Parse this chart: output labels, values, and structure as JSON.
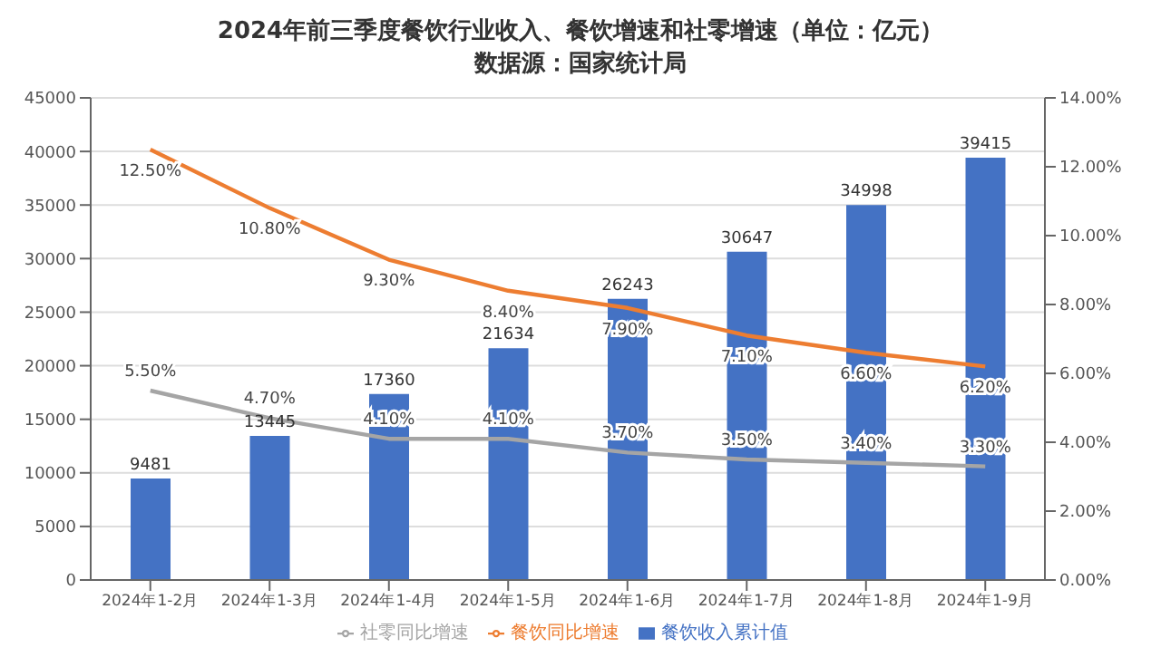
{
  "chart_data": {
    "type": "bar",
    "title": "2024年前三季度餐饮行业收入、餐饮增速和社零增速（单位：亿元）",
    "subtitle": "数据源：国家统计局",
    "categories": [
      "2024年1-2月",
      "2024年1-3月",
      "2024年1-4月",
      "2024年1-5月",
      "2024年1-6月",
      "2024年1-7月",
      "2024年1-8月",
      "2024年1-9月"
    ],
    "series": [
      {
        "name": "餐饮收入累计值",
        "color": "#4472c4",
        "values": [
          9481,
          13445,
          17360,
          21634,
          26243,
          30647,
          34998,
          39415
        ],
        "value_labels": [
          "9481",
          "13445",
          "17360",
          "21634",
          "26243",
          "30647",
          "34998",
          "39415"
        ]
      },
      {
        "name": "餐饮同比增速",
        "type": "line",
        "axis": "y2",
        "color": "#ed7d31",
        "values": [
          12.5,
          10.8,
          9.3,
          8.4,
          7.9,
          7.1,
          6.6,
          6.2
        ],
        "value_labels": [
          "12.50%",
          "10.80%",
          "9.30%",
          "8.40%",
          "7.90%",
          "7.10%",
          "6.60%",
          "6.20%"
        ]
      },
      {
        "name": "社零同比增速",
        "type": "line",
        "axis": "y2",
        "color": "#a5a5a5",
        "values": [
          5.5,
          4.7,
          4.1,
          4.1,
          3.7,
          3.5,
          3.4,
          3.3
        ],
        "value_labels": [
          "5.50%",
          "4.70%",
          "4.10%",
          "4.10%",
          "3.70%",
          "3.50%",
          "3.40%",
          "3.30%"
        ]
      }
    ],
    "ylim": [
      0,
      45000
    ],
    "yticks": [
      0,
      5000,
      10000,
      15000,
      20000,
      25000,
      30000,
      35000,
      40000,
      45000
    ],
    "y2lim": [
      0,
      14
    ],
    "y2ticks": [
      {
        "value": 0,
        "label": "0.00%"
      },
      {
        "value": 2,
        "label": "2.00%"
      },
      {
        "value": 4,
        "label": "4.00%"
      },
      {
        "value": 6,
        "label": "6.00%"
      },
      {
        "value": 8,
        "label": "8.00%"
      },
      {
        "value": 10,
        "label": "10.00%"
      },
      {
        "value": 12,
        "label": "12.00%"
      },
      {
        "value": 14,
        "label": "14.00%"
      }
    ],
    "grid": "y",
    "legend": "bottom",
    "marker": "none",
    "line_style": "solid"
  }
}
